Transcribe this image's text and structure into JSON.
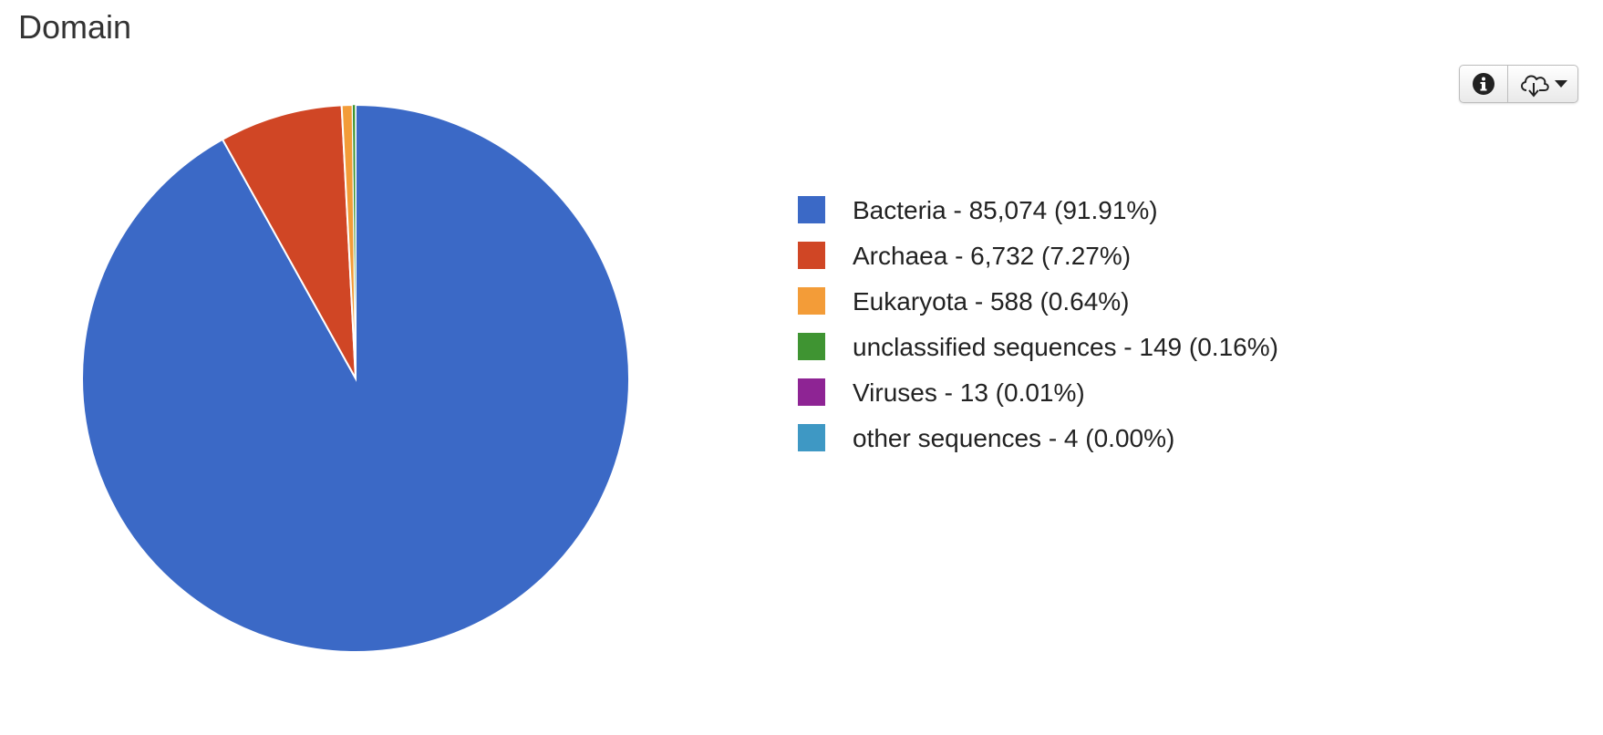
{
  "page": {
    "title": "Domain"
  },
  "toolbar": {
    "info_icon": "info-icon",
    "download_icon": "cloud-download-icon",
    "dropdown_icon": "caret-down-icon"
  },
  "chart_data": {
    "type": "pie",
    "title": "Domain",
    "legend_position": "right",
    "slices": [
      {
        "label": "Bacteria",
        "value": 85074,
        "percent": 91.91,
        "color": "#3b69c6",
        "legend_text": "Bacteria - 85,074 (91.91%)"
      },
      {
        "label": "Archaea",
        "value": 6732,
        "percent": 7.27,
        "color": "#d04625",
        "legend_text": "Archaea - 6,732 (7.27%)"
      },
      {
        "label": "Eukaryota",
        "value": 588,
        "percent": 0.64,
        "color": "#f39c38",
        "legend_text": "Eukaryota - 588 (0.64%)"
      },
      {
        "label": "unclassified sequences",
        "value": 149,
        "percent": 0.16,
        "color": "#3f9432",
        "legend_text": "unclassified sequences - 149 (0.16%)"
      },
      {
        "label": "Viruses",
        "value": 13,
        "percent": 0.01,
        "color": "#8e2494",
        "legend_text": "Viruses - 13 (0.01%)"
      },
      {
        "label": "other sequences",
        "value": 4,
        "percent": 0.0,
        "color": "#3e98c4",
        "legend_text": "other sequences - 4 (0.00%)"
      }
    ]
  }
}
